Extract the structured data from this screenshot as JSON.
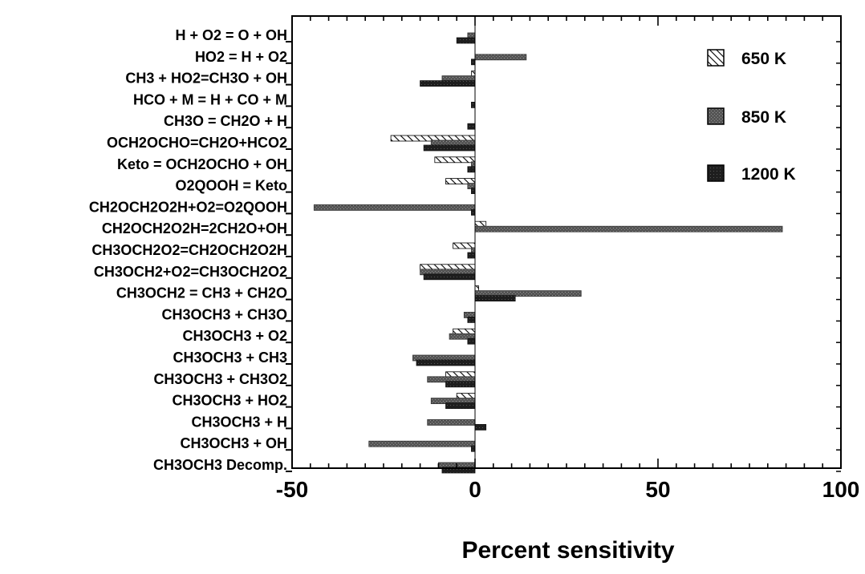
{
  "chart_data": {
    "type": "bar",
    "orientation": "horizontal",
    "title": "",
    "xlabel": "Percent sensitivity",
    "ylabel": "",
    "xlim": [
      -50,
      100
    ],
    "x_ticks": [
      -50,
      0,
      50,
      100
    ],
    "x_tick_labels": [
      "-50",
      "0",
      "50",
      "100"
    ],
    "grid": false,
    "legend_position": "top-right",
    "categories": [
      "H + O2 = O + OH",
      "HO2 = H + O2",
      "CH3 + HO2=CH3O + OH",
      "HCO + M = H + CO + M",
      "CH3O = CH2O + H",
      "OCH2OCHO=CH2O+HCO2",
      "Keto = OCH2OCHO + OH",
      "O2QOOH = Keto",
      "CH2OCH2O2H+O2=O2QOOH",
      "CH2OCH2O2H=2CH2O+OH",
      "CH3OCH2O2=CH2OCH2O2H",
      "CH3OCH2+O2=CH3OCH2O2",
      "CH3OCH2 = CH3 + CH2O",
      "CH3OCH3 + CH3O",
      "CH3OCH3 + O2",
      "CH3OCH3 + CH3",
      "CH3OCH3 + CH3O2",
      "CH3OCH3 + HO2",
      "CH3OCH3 + H",
      "CH3OCH3 + OH",
      "CH3OCH3 Decomp."
    ],
    "series": [
      {
        "name": "650 K",
        "pattern": "hatched",
        "values": [
          0,
          0,
          -1,
          0,
          0,
          -23,
          -11,
          -8,
          0,
          3,
          -6,
          -15,
          1,
          0,
          -6,
          0,
          -8,
          -5,
          0,
          0,
          0
        ]
      },
      {
        "name": "850 K",
        "pattern": "gray-stipple",
        "values": [
          -2,
          14,
          -9,
          0,
          0,
          -12,
          -1,
          -2,
          -44,
          84,
          -1,
          -15,
          29,
          -3,
          -7,
          -17,
          -13,
          -12,
          -13,
          -29,
          -10
        ]
      },
      {
        "name": "1200 K",
        "pattern": "dark-stipple",
        "values": [
          -5,
          -1,
          -15,
          -1,
          -2,
          -14,
          -2,
          -1,
          -1,
          0,
          -2,
          -14,
          11,
          -2,
          -2,
          -16,
          -8,
          -8,
          3,
          -1,
          -9
        ]
      }
    ],
    "colors": {
      "hatch": "#000000",
      "medium": "#4d4d4d",
      "dark": "#1c1c1c",
      "axis": "#000000"
    }
  }
}
